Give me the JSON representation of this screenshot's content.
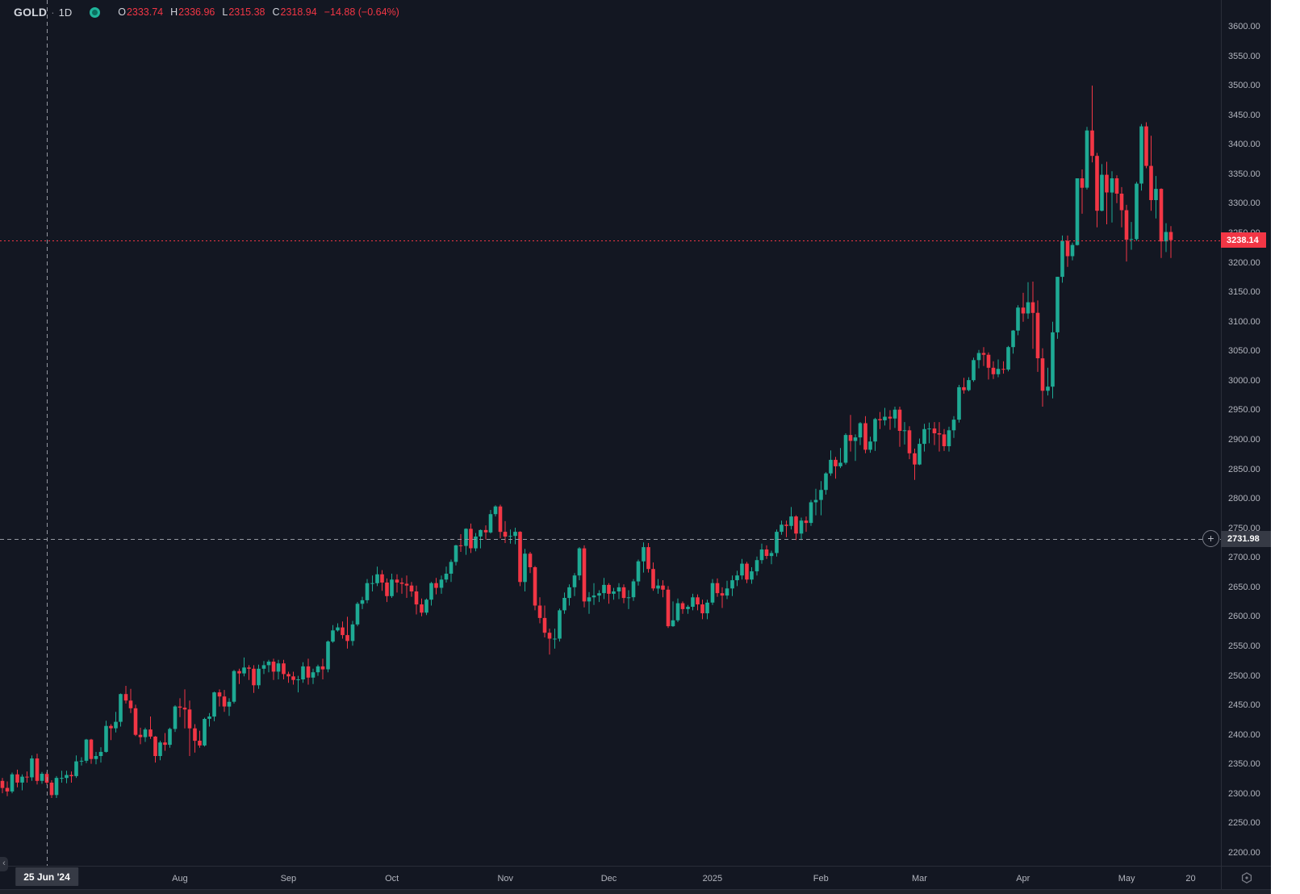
{
  "legend": {
    "symbol": "GOLD",
    "separator": "·",
    "timeframe": "1D",
    "ohlc": [
      {
        "k": "O",
        "v": "2333.74"
      },
      {
        "k": "H",
        "v": "2336.96"
      },
      {
        "k": "L",
        "v": "2315.38"
      },
      {
        "k": "C",
        "v": "2318.94"
      }
    ],
    "change": "−14.88 (−0.64%)"
  },
  "colors": {
    "background": "#131722",
    "up": "#1eaa94",
    "down": "#f23645",
    "axis_text": "#b2b5be",
    "border": "#2a2e39",
    "crosshair": "#9598a1",
    "crosshair_label_bg": "#363a45",
    "last_price": "#f23645"
  },
  "chart_data": {
    "type": "candlestick",
    "title": "GOLD 1D",
    "price_axis": {
      "min": 2200,
      "max": 3600,
      "step": 50
    },
    "time_axis": {
      "labels": [
        {
          "text": "Aug",
          "index": 36
        },
        {
          "text": "Sep",
          "index": 58
        },
        {
          "text": "Oct",
          "index": 79
        },
        {
          "text": "Nov",
          "index": 102
        },
        {
          "text": "Dec",
          "index": 123
        },
        {
          "text": "2025",
          "index": 144
        },
        {
          "text": "Feb",
          "index": 166
        },
        {
          "text": "Mar",
          "index": 186
        },
        {
          "text": "Apr",
          "index": 207
        },
        {
          "text": "May",
          "index": 228
        },
        {
          "text": "20",
          "index": 241
        }
      ]
    },
    "crosshair": {
      "candle_index": 9,
      "price": 2731.98,
      "price_label": "2731.98",
      "date_label": "25 Jun '24"
    },
    "last_price": {
      "price": 3238.14,
      "label": "3238.14"
    },
    "candles": [
      [
        2322,
        2327,
        2301,
        2310
      ],
      [
        2310,
        2321,
        2296,
        2304
      ],
      [
        2304,
        2336,
        2301,
        2333
      ],
      [
        2333,
        2341,
        2311,
        2319
      ],
      [
        2319,
        2333,
        2306,
        2329
      ],
      [
        2329,
        2338,
        2319,
        2328
      ],
      [
        2328,
        2365,
        2322,
        2360
      ],
      [
        2360,
        2368,
        2316,
        2322
      ],
      [
        2322,
        2337,
        2317,
        2334
      ],
      [
        2333.74,
        2336.96,
        2315.38,
        2318.94
      ],
      [
        2319,
        2323,
        2293,
        2298
      ],
      [
        2298,
        2330,
        2293,
        2327
      ],
      [
        2327,
        2339,
        2319,
        2327
      ],
      [
        2327,
        2339,
        2318,
        2332
      ],
      [
        2332,
        2338,
        2319,
        2330
      ],
      [
        2330,
        2365,
        2327,
        2355
      ],
      [
        2355,
        2362,
        2348,
        2356
      ],
      [
        2356,
        2393,
        2352,
        2392
      ],
      [
        2392,
        2393,
        2351,
        2359
      ],
      [
        2359,
        2371,
        2350,
        2364
      ],
      [
        2364,
        2379,
        2353,
        2371
      ],
      [
        2371,
        2424,
        2370,
        2415
      ],
      [
        2415,
        2418,
        2391,
        2411
      ],
      [
        2411,
        2439,
        2404,
        2422
      ],
      [
        2422,
        2470,
        2414,
        2469
      ],
      [
        2469,
        2483,
        2453,
        2458
      ],
      [
        2458,
        2478,
        2437,
        2445
      ],
      [
        2445,
        2451,
        2398,
        2400
      ],
      [
        2400,
        2412,
        2384,
        2396
      ],
      [
        2396,
        2412,
        2388,
        2409
      ],
      [
        2409,
        2431,
        2393,
        2397
      ],
      [
        2397,
        2398,
        2353,
        2364
      ],
      [
        2364,
        2390,
        2357,
        2387
      ],
      [
        2387,
        2403,
        2373,
        2383
      ],
      [
        2383,
        2412,
        2378,
        2410
      ],
      [
        2410,
        2450,
        2405,
        2448
      ],
      [
        2448,
        2462,
        2430,
        2446
      ],
      [
        2446,
        2477,
        2411,
        2443
      ],
      [
        2443,
        2458,
        2364,
        2411
      ],
      [
        2411,
        2418,
        2370,
        2390
      ],
      [
        2390,
        2407,
        2378,
        2382
      ],
      [
        2382,
        2429,
        2380,
        2427
      ],
      [
        2427,
        2437,
        2414,
        2431
      ],
      [
        2431,
        2473,
        2423,
        2472
      ],
      [
        2472,
        2477,
        2448,
        2465
      ],
      [
        2465,
        2476,
        2439,
        2448
      ],
      [
        2448,
        2462,
        2432,
        2456
      ],
      [
        2456,
        2510,
        2453,
        2508
      ],
      [
        2508,
        2512,
        2486,
        2504
      ],
      [
        2504,
        2531,
        2499,
        2514
      ],
      [
        2514,
        2518,
        2493,
        2512
      ],
      [
        2512,
        2518,
        2471,
        2484
      ],
      [
        2484,
        2519,
        2478,
        2512
      ],
      [
        2512,
        2525,
        2503,
        2518
      ],
      [
        2518,
        2527,
        2506,
        2524
      ],
      [
        2524,
        2529,
        2493,
        2507
      ],
      [
        2507,
        2527,
        2494,
        2521
      ],
      [
        2521,
        2527,
        2494,
        2503
      ],
      [
        2503,
        2507,
        2488,
        2499
      ],
      [
        2499,
        2507,
        2485,
        2493
      ],
      [
        2493,
        2500,
        2472,
        2494
      ],
      [
        2494,
        2523,
        2488,
        2516
      ],
      [
        2516,
        2529,
        2485,
        2497
      ],
      [
        2497,
        2512,
        2486,
        2506
      ],
      [
        2506,
        2519,
        2500,
        2516
      ],
      [
        2516,
        2529,
        2494,
        2511
      ],
      [
        2511,
        2560,
        2506,
        2558
      ],
      [
        2558,
        2586,
        2556,
        2577
      ],
      [
        2577,
        2589,
        2575,
        2582
      ],
      [
        2582,
        2592,
        2563,
        2569
      ],
      [
        2569,
        2600,
        2546,
        2559
      ],
      [
        2559,
        2593,
        2551,
        2587
      ],
      [
        2587,
        2625,
        2584,
        2622
      ],
      [
        2622,
        2634,
        2613,
        2628
      ],
      [
        2628,
        2664,
        2623,
        2657
      ],
      [
        2657,
        2670,
        2643,
        2657
      ],
      [
        2657,
        2685,
        2652,
        2672
      ],
      [
        2672,
        2679,
        2644,
        2658
      ],
      [
        2658,
        2665,
        2625,
        2635
      ],
      [
        2635,
        2673,
        2632,
        2663
      ],
      [
        2663,
        2672,
        2641,
        2658
      ],
      [
        2658,
        2666,
        2639,
        2656
      ],
      [
        2656,
        2670,
        2632,
        2653
      ],
      [
        2653,
        2659,
        2634,
        2643
      ],
      [
        2643,
        2653,
        2604,
        2621
      ],
      [
        2621,
        2631,
        2601,
        2607
      ],
      [
        2607,
        2631,
        2603,
        2629
      ],
      [
        2629,
        2659,
        2619,
        2657
      ],
      [
        2657,
        2666,
        2638,
        2649
      ],
      [
        2649,
        2670,
        2639,
        2663
      ],
      [
        2663,
        2685,
        2658,
        2673
      ],
      [
        2673,
        2697,
        2659,
        2693
      ],
      [
        2693,
        2722,
        2687,
        2721
      ],
      [
        2721,
        2740,
        2710,
        2720
      ],
      [
        2720,
        2750,
        2705,
        2749
      ],
      [
        2749,
        2758,
        2708,
        2716
      ],
      [
        2716,
        2742,
        2711,
        2736
      ],
      [
        2736,
        2748,
        2716,
        2747
      ],
      [
        2747,
        2755,
        2731,
        2743
      ],
      [
        2743,
        2781,
        2741,
        2774
      ],
      [
        2774,
        2789,
        2770,
        2787
      ],
      [
        2787,
        2790,
        2733,
        2744
      ],
      [
        2744,
        2762,
        2725,
        2736
      ],
      [
        2736,
        2748,
        2724,
        2737
      ],
      [
        2737,
        2751,
        2723,
        2744
      ],
      [
        2744,
        2745,
        2652,
        2659
      ],
      [
        2659,
        2715,
        2643,
        2707
      ],
      [
        2707,
        2710,
        2674,
        2684
      ],
      [
        2684,
        2686,
        2611,
        2619
      ],
      [
        2619,
        2633,
        2589,
        2598
      ],
      [
        2598,
        2619,
        2565,
        2573
      ],
      [
        2573,
        2580,
        2536,
        2563
      ],
      [
        2563,
        2580,
        2546,
        2563
      ],
      [
        2563,
        2614,
        2558,
        2611
      ],
      [
        2611,
        2641,
        2605,
        2632
      ],
      [
        2632,
        2655,
        2619,
        2650
      ],
      [
        2650,
        2674,
        2635,
        2670
      ],
      [
        2670,
        2718,
        2662,
        2716
      ],
      [
        2716,
        2721,
        2616,
        2626
      ],
      [
        2626,
        2642,
        2605,
        2633
      ],
      [
        2633,
        2657,
        2620,
        2636
      ],
      [
        2636,
        2645,
        2625,
        2640
      ],
      [
        2640,
        2666,
        2630,
        2654
      ],
      [
        2654,
        2657,
        2622,
        2639
      ],
      [
        2639,
        2649,
        2629,
        2643
      ],
      [
        2643,
        2657,
        2630,
        2650
      ],
      [
        2650,
        2655,
        2623,
        2632
      ],
      [
        2632,
        2645,
        2613,
        2633
      ],
      [
        2633,
        2664,
        2627,
        2660
      ],
      [
        2660,
        2697,
        2653,
        2694
      ],
      [
        2694,
        2726,
        2675,
        2718
      ],
      [
        2718,
        2725,
        2675,
        2681
      ],
      [
        2681,
        2692,
        2644,
        2648
      ],
      [
        2648,
        2664,
        2639,
        2653
      ],
      [
        2653,
        2662,
        2633,
        2646
      ],
      [
        2646,
        2652,
        2581,
        2584
      ],
      [
        2584,
        2626,
        2583,
        2594
      ],
      [
        2594,
        2631,
        2591,
        2623
      ],
      [
        2623,
        2626,
        2605,
        2613
      ],
      [
        2613,
        2620,
        2605,
        2617
      ],
      [
        2617,
        2639,
        2611,
        2633
      ],
      [
        2633,
        2638,
        2611,
        2621
      ],
      [
        2621,
        2629,
        2596,
        2606
      ],
      [
        2606,
        2629,
        2596,
        2624
      ],
      [
        2624,
        2664,
        2620,
        2657
      ],
      [
        2657,
        2665,
        2634,
        2640
      ],
      [
        2640,
        2650,
        2615,
        2636
      ],
      [
        2636,
        2661,
        2630,
        2648
      ],
      [
        2648,
        2670,
        2635,
        2662
      ],
      [
        2662,
        2678,
        2652,
        2670
      ],
      [
        2670,
        2698,
        2663,
        2690
      ],
      [
        2690,
        2693,
        2657,
        2663
      ],
      [
        2663,
        2684,
        2656,
        2677
      ],
      [
        2677,
        2702,
        2670,
        2696
      ],
      [
        2696,
        2724,
        2690,
        2714
      ],
      [
        2714,
        2721,
        2698,
        2703
      ],
      [
        2703,
        2712,
        2689,
        2708
      ],
      [
        2708,
        2748,
        2702,
        2744
      ],
      [
        2744,
        2763,
        2739,
        2756
      ],
      [
        2756,
        2763,
        2735,
        2754
      ],
      [
        2754,
        2786,
        2748,
        2770
      ],
      [
        2770,
        2772,
        2730,
        2741
      ],
      [
        2741,
        2768,
        2730,
        2763
      ],
      [
        2763,
        2770,
        2744,
        2759
      ],
      [
        2759,
        2798,
        2754,
        2794
      ],
      [
        2794,
        2817,
        2772,
        2798
      ],
      [
        2798,
        2830,
        2772,
        2815
      ],
      [
        2815,
        2845,
        2807,
        2843
      ],
      [
        2843,
        2882,
        2839,
        2866
      ],
      [
        2866,
        2871,
        2834,
        2855
      ],
      [
        2855,
        2886,
        2852,
        2861
      ],
      [
        2861,
        2911,
        2858,
        2908
      ],
      [
        2908,
        2942,
        2880,
        2898
      ],
      [
        2898,
        2909,
        2864,
        2904
      ],
      [
        2904,
        2930,
        2891,
        2928
      ],
      [
        2928,
        2940,
        2877,
        2883
      ],
      [
        2883,
        2905,
        2878,
        2897
      ],
      [
        2897,
        2937,
        2881,
        2935
      ],
      [
        2935,
        2947,
        2918,
        2933
      ],
      [
        2933,
        2954,
        2924,
        2939
      ],
      [
        2939,
        2950,
        2917,
        2936
      ],
      [
        2936,
        2956,
        2920,
        2951
      ],
      [
        2951,
        2956,
        2888,
        2915
      ],
      [
        2915,
        2930,
        2892,
        2916
      ],
      [
        2916,
        2923,
        2867,
        2877
      ],
      [
        2877,
        2885,
        2832,
        2858
      ],
      [
        2858,
        2902,
        2857,
        2893
      ],
      [
        2893,
        2927,
        2880,
        2918
      ],
      [
        2918,
        2929,
        2894,
        2919
      ],
      [
        2919,
        2930,
        2891,
        2911
      ],
      [
        2911,
        2930,
        2880,
        2909
      ],
      [
        2909,
        2918,
        2881,
        2889
      ],
      [
        2889,
        2922,
        2880,
        2916
      ],
      [
        2916,
        2940,
        2903,
        2934
      ],
      [
        2934,
        2993,
        2929,
        2989
      ],
      [
        2989,
        3005,
        2978,
        2984
      ],
      [
        2984,
        3006,
        2982,
        3001
      ],
      [
        3001,
        3039,
        2998,
        3035
      ],
      [
        3035,
        3052,
        3021,
        3047
      ],
      [
        3047,
        3057,
        3025,
        3044
      ],
      [
        3044,
        3048,
        3002,
        3022
      ],
      [
        3022,
        3033,
        3003,
        3011
      ],
      [
        3011,
        3036,
        3006,
        3020
      ],
      [
        3020,
        3033,
        3012,
        3019
      ],
      [
        3019,
        3059,
        3016,
        3057
      ],
      [
        3057,
        3086,
        3046,
        3085
      ],
      [
        3085,
        3128,
        3077,
        3124
      ],
      [
        3124,
        3149,
        3100,
        3114
      ],
      [
        3114,
        3167,
        3105,
        3133
      ],
      [
        3133,
        3168,
        3054,
        3115
      ],
      [
        3115,
        3136,
        3015,
        3038
      ],
      [
        3038,
        3055,
        2956,
        2983
      ],
      [
        2983,
        3022,
        2975,
        2990
      ],
      [
        2990,
        3100,
        2970,
        3082
      ],
      [
        3082,
        3176,
        3071,
        3176
      ],
      [
        3176,
        3246,
        3166,
        3237
      ],
      [
        3237,
        3246,
        3193,
        3211
      ],
      [
        3211,
        3234,
        3204,
        3230
      ],
      [
        3230,
        3343,
        3229,
        3343
      ],
      [
        3343,
        3358,
        3283,
        3327
      ],
      [
        3327,
        3430,
        3324,
        3424
      ],
      [
        3424,
        3500,
        3370,
        3381
      ],
      [
        3381,
        3386,
        3260,
        3288
      ],
      [
        3288,
        3367,
        3287,
        3349
      ],
      [
        3349,
        3371,
        3265,
        3319
      ],
      [
        3319,
        3355,
        3268,
        3343
      ],
      [
        3343,
        3348,
        3301,
        3317
      ],
      [
        3317,
        3328,
        3260,
        3289
      ],
      [
        3289,
        3298,
        3202,
        3239
      ],
      [
        3239,
        3269,
        3222,
        3240
      ],
      [
        3240,
        3337,
        3237,
        3334
      ],
      [
        3334,
        3435,
        3322,
        3431
      ],
      [
        3431,
        3438,
        3360,
        3364
      ],
      [
        3364,
        3415,
        3288,
        3306
      ],
      [
        3306,
        3347,
        3275,
        3325
      ],
      [
        3325,
        3326,
        3208,
        3236
      ],
      [
        3236,
        3267,
        3218,
        3252
      ],
      [
        3252,
        3262,
        3208,
        3238.14
      ]
    ]
  }
}
